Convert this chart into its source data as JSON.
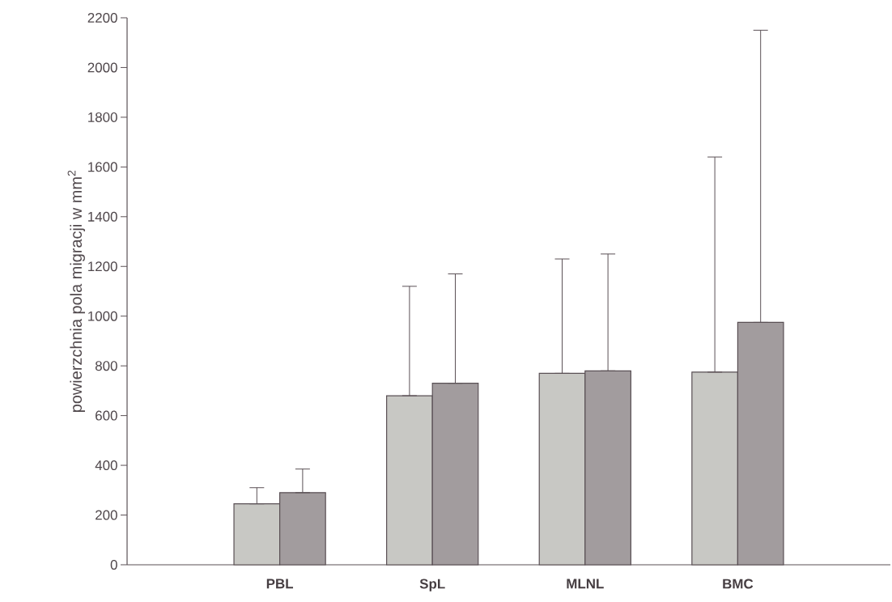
{
  "chart_data": {
    "type": "bar",
    "ylabel": "powierzchnia pola migracji w mm$^{2}$",
    "categories": [
      "PBL",
      "SpL",
      "MLNL",
      "BMC"
    ],
    "series": [
      {
        "color": "#c8c8c4",
        "values": [
          245,
          680,
          770,
          775
        ],
        "errors": [
          [
            245,
            310
          ],
          [
            680,
            1120
          ],
          [
            770,
            1230
          ],
          [
            775,
            1640
          ]
        ]
      },
      {
        "color": "#a29c9e",
        "values": [
          290,
          730,
          780,
          975
        ],
        "errors": [
          [
            290,
            385
          ],
          [
            730,
            1170
          ],
          [
            780,
            1250
          ],
          [
            975,
            2150
          ]
        ]
      }
    ],
    "ylim": [
      0,
      2200
    ],
    "yticks": [
      0,
      200,
      400,
      600,
      800,
      1000,
      1200,
      1400,
      1600,
      1800,
      2000,
      2200
    ]
  }
}
